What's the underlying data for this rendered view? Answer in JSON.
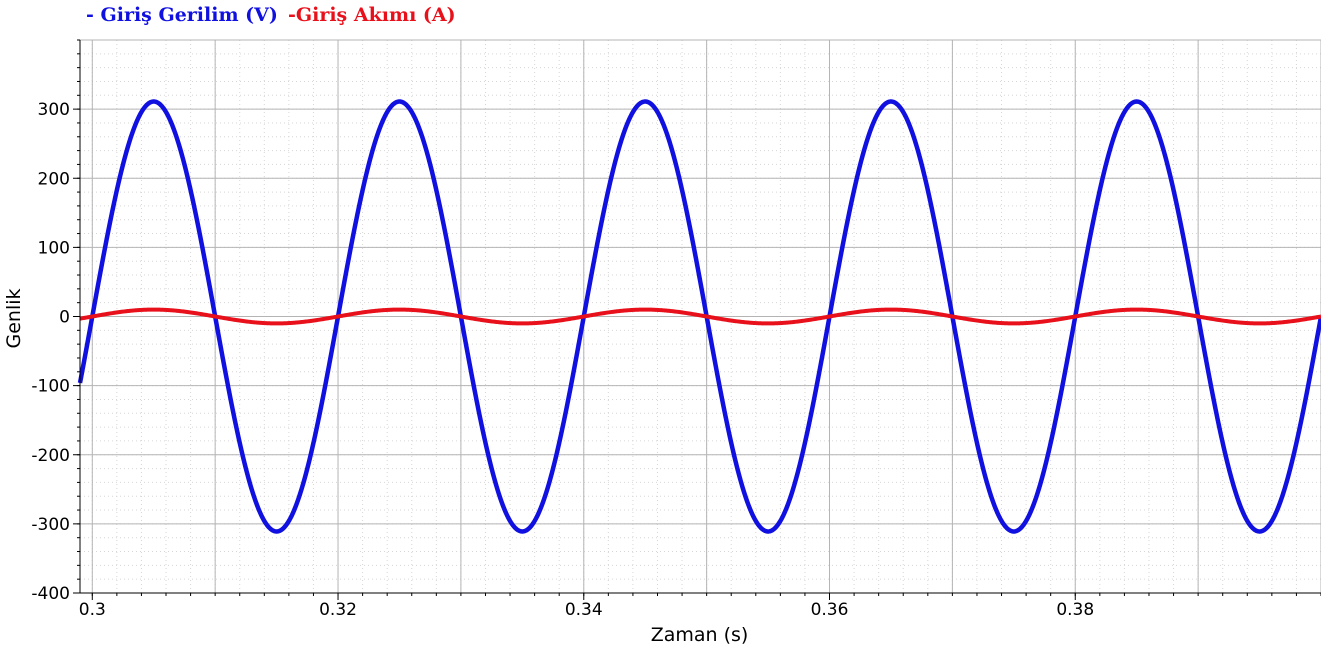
{
  "chart_data": {
    "type": "line",
    "title": "",
    "xlabel": "Zaman (s)",
    "ylabel": "Genlik",
    "xlim": [
      0.299,
      0.4
    ],
    "ylim": [
      -400,
      400
    ],
    "grid": true,
    "legend_position": "top-left",
    "x_ticks": [
      0.3,
      0.32,
      0.34,
      0.36,
      0.38
    ],
    "x_tick_labels": [
      "0.3",
      "0.32",
      "0.34",
      "0.36",
      "0.38"
    ],
    "y_ticks": [
      300,
      200,
      100,
      0,
      -100,
      -200,
      -300,
      -400
    ],
    "y_tick_labels": [
      "300",
      "200",
      "100",
      "0",
      "-100",
      "-200",
      "-300",
      "-400"
    ],
    "series": [
      {
        "name": "- Giriş Gerilim (V)",
        "color": "#1010e0",
        "waveform": "sine",
        "amplitude": 311,
        "frequency_hz": 50,
        "phase_deg": 0,
        "x_start": 0.299,
        "x_end": 0.4,
        "points": [
          [
            0.3,
            0
          ],
          [
            0.305,
            311
          ],
          [
            0.31,
            0
          ],
          [
            0.315,
            -311
          ],
          [
            0.32,
            0
          ],
          [
            0.325,
            311
          ],
          [
            0.33,
            0
          ],
          [
            0.335,
            -311
          ],
          [
            0.34,
            0
          ],
          [
            0.345,
            311
          ],
          [
            0.35,
            0
          ],
          [
            0.355,
            -311
          ],
          [
            0.36,
            0
          ],
          [
            0.365,
            311
          ],
          [
            0.37,
            0
          ],
          [
            0.375,
            -311
          ],
          [
            0.38,
            0
          ],
          [
            0.385,
            311
          ],
          [
            0.39,
            0
          ],
          [
            0.395,
            -311
          ],
          [
            0.4,
            0
          ]
        ]
      },
      {
        "name": "-Giriş Akımı (A)",
        "color": "#e8101a",
        "waveform": "sine",
        "amplitude": 10,
        "frequency_hz": 50,
        "phase_deg": 0,
        "x_start": 0.299,
        "x_end": 0.4,
        "points": [
          [
            0.3,
            0
          ],
          [
            0.305,
            10
          ],
          [
            0.31,
            0
          ],
          [
            0.315,
            -10
          ],
          [
            0.32,
            0
          ],
          [
            0.325,
            10
          ],
          [
            0.33,
            0
          ],
          [
            0.335,
            -10
          ],
          [
            0.34,
            0
          ],
          [
            0.345,
            10
          ],
          [
            0.35,
            0
          ],
          [
            0.355,
            -10
          ],
          [
            0.36,
            0
          ],
          [
            0.365,
            10
          ],
          [
            0.37,
            0
          ],
          [
            0.375,
            -10
          ],
          [
            0.38,
            0
          ],
          [
            0.385,
            10
          ],
          [
            0.39,
            0
          ],
          [
            0.395,
            -10
          ],
          [
            0.4,
            0
          ]
        ]
      }
    ]
  }
}
